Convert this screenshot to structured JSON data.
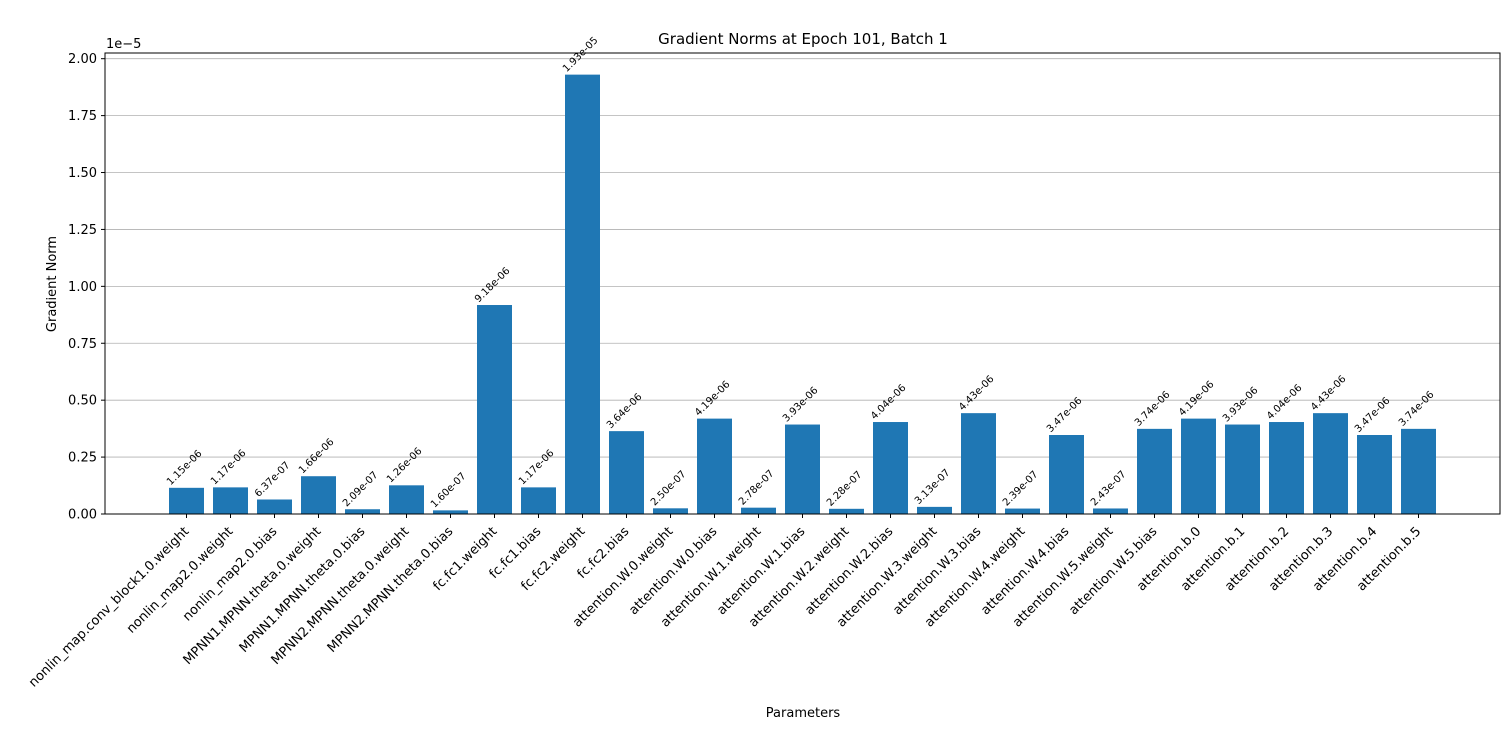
{
  "chart_data": {
    "type": "bar",
    "title": "Gradient Norms at Epoch 101, Batch 1",
    "xlabel": "Parameters",
    "ylabel": "Gradient Norm",
    "y_offset_label": "1e−5",
    "y_scale": 1e-05,
    "ylim": [
      0,
      2.025
    ],
    "yticks": [
      "0.00",
      "0.25",
      "0.50",
      "0.75",
      "1.00",
      "1.25",
      "1.50",
      "1.75",
      "2.00"
    ],
    "grid": "y",
    "bar_color": "#1f77b4",
    "categories": [
      "nonlin_map.conv_block1.0.weight",
      "nonlin_map2.0.weight",
      "nonlin_map2.0.bias",
      "MPNN1.MPNN.theta.0.weight",
      "MPNN1.MPNN.theta.0.bias",
      "MPNN2.MPNN.theta.0.weight",
      "MPNN2.MPNN.theta.0.bias",
      "fc.fc1.weight",
      "fc.fc1.bias",
      "fc.fc2.weight",
      "fc.fc2.bias",
      "attention.W.0.weight",
      "attention.W.0.bias",
      "attention.W.1.weight",
      "attention.W.1.bias",
      "attention.W.2.weight",
      "attention.W.2.bias",
      "attention.W.3.weight",
      "attention.W.3.bias",
      "attention.W.4.weight",
      "attention.W.4.bias",
      "attention.W.5.weight",
      "attention.W.5.bias",
      "attention.b.0",
      "attention.b.1",
      "attention.b.2",
      "attention.b.3",
      "attention.b.4",
      "attention.b.5"
    ],
    "values": [
      0.115,
      0.117,
      0.0637,
      0.166,
      0.0209,
      0.126,
      0.016,
      0.918,
      0.117,
      1.93,
      0.364,
      0.025,
      0.419,
      0.0278,
      0.393,
      0.0228,
      0.404,
      0.0313,
      0.443,
      0.0239,
      0.347,
      0.0243,
      0.374,
      0.419,
      0.393,
      0.404,
      0.443,
      0.347,
      0.374
    ],
    "value_labels": [
      "1.15e-06",
      "1.17e-06",
      "6.37e-07",
      "1.66e-06",
      "2.09e-07",
      "1.26e-06",
      "1.60e-07",
      "9.18e-06",
      "1.17e-06",
      "1.93e-05",
      "3.64e-06",
      "2.50e-07",
      "4.19e-06",
      "2.78e-07",
      "3.93e-06",
      "2.28e-07",
      "4.04e-06",
      "3.13e-07",
      "4.43e-06",
      "2.39e-07",
      "3.47e-06",
      "2.43e-07",
      "3.74e-06",
      "4.19e-06",
      "3.93e-06",
      "4.04e-06",
      "4.43e-06",
      "3.47e-06",
      "3.74e-06"
    ]
  }
}
